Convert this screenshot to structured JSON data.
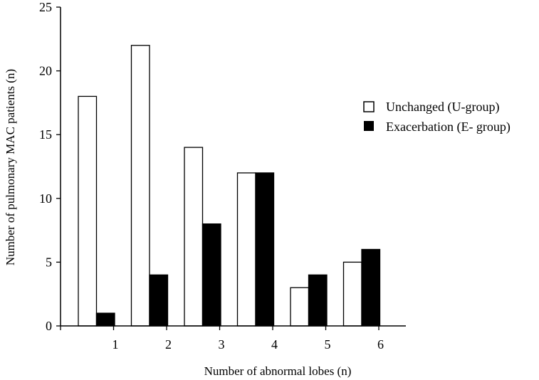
{
  "chart_data": {
    "type": "bar",
    "title": "",
    "xlabel": "Number of abnormal lobes (n)",
    "ylabel": "Number of pulmonary MAC patients  (n)",
    "categories": [
      "1",
      "2",
      "3",
      "4",
      "5",
      "6"
    ],
    "series": [
      {
        "name": "Unchanged (U-group)",
        "color": "#ffffff",
        "values": [
          18,
          22,
          14,
          12,
          3,
          5
        ]
      },
      {
        "name": "Exacerbation (E- group)",
        "color": "#000000",
        "values": [
          1,
          4,
          8,
          12,
          4,
          6
        ]
      }
    ],
    "ylim": [
      0,
      25
    ],
    "yticks": [
      0,
      5,
      10,
      15,
      20,
      25
    ],
    "grid": false,
    "legend_position": "right"
  }
}
